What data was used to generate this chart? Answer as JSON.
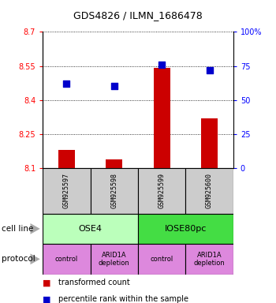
{
  "title": "GDS4826 / ILMN_1686478",
  "samples": [
    "GSM925597",
    "GSM925598",
    "GSM925599",
    "GSM925600"
  ],
  "bar_values": [
    8.18,
    8.14,
    8.54,
    8.32
  ],
  "bar_base": 8.1,
  "dot_values_pct": [
    62,
    60,
    76,
    72
  ],
  "ylim_left": [
    8.1,
    8.7
  ],
  "ylim_right": [
    0,
    100
  ],
  "yticks_left": [
    8.1,
    8.25,
    8.4,
    8.55,
    8.7
  ],
  "yticks_right": [
    0,
    25,
    50,
    75,
    100
  ],
  "ytick_labels_left": [
    "8.1",
    "8.25",
    "8.4",
    "8.55",
    "8.7"
  ],
  "ytick_labels_right": [
    "0",
    "25",
    "50",
    "75",
    "100%"
  ],
  "bar_color": "#cc0000",
  "dot_color": "#0000cc",
  "cell_line_labels": [
    "OSE4",
    "IOSE80pc"
  ],
  "cell_line_colors": [
    "#bbffbb",
    "#44dd44"
  ],
  "cell_line_spans": [
    [
      0,
      2
    ],
    [
      2,
      4
    ]
  ],
  "protocol_labels": [
    "control",
    "ARID1A\ndepletion",
    "control",
    "ARID1A\ndepletion"
  ],
  "protocol_color": "#dd88dd",
  "legend_red_label": "transformed count",
  "legend_blue_label": "percentile rank within the sample",
  "cell_line_row_label": "cell line",
  "protocol_row_label": "protocol",
  "sample_box_color": "#cccccc",
  "bar_width": 0.35
}
